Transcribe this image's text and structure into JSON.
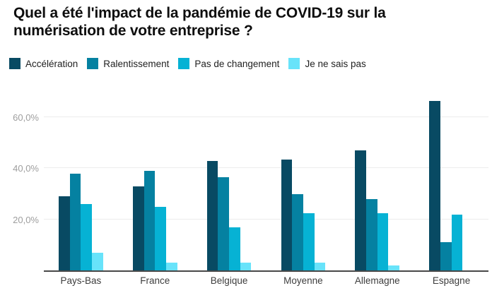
{
  "title": "Quel a été l'impact de la pandémie de COVID-19 sur la numérisation de votre entreprise ?",
  "colors": {
    "acceleration": "#084a63",
    "ralentissement": "#0581a1",
    "pas_de_changement": "#06b2d4",
    "je_ne_sais_pas": "#68e3fa",
    "gridline": "#ececec",
    "axis_line": "#484848",
    "y_label": "#9e9e9e",
    "x_label": "#3d3d3d"
  },
  "chart_data": {
    "type": "bar",
    "title": "Quel a été l'impact de la pandémie de COVID-19 sur la numérisation de votre entreprise ?",
    "categories": [
      "Pays-Bas",
      "France",
      "Belgique",
      "Moyenne",
      "Allemagne",
      "Espagne"
    ],
    "series": [
      {
        "name": "Accélération",
        "color": "#084a63",
        "values": [
          29,
          33,
          43,
          43.5,
          47,
          66.5
        ]
      },
      {
        "name": "Ralentissement",
        "color": "#0581a1",
        "values": [
          38,
          39,
          36.5,
          30,
          28,
          11
        ]
      },
      {
        "name": "Pas de changement",
        "color": "#06b2d4",
        "values": [
          26,
          25,
          17,
          22.5,
          22.5,
          22
        ]
      },
      {
        "name": "Je ne sais pas",
        "color": "#68e3fa",
        "values": [
          7,
          3,
          3,
          3,
          2,
          0
        ]
      }
    ],
    "xlabel": "",
    "ylabel": "",
    "y_ticks": [
      {
        "value": 20,
        "label": "20,0%"
      },
      {
        "value": 40,
        "label": "40,0%"
      },
      {
        "value": 60,
        "label": "60,0%"
      }
    ],
    "ylim": [
      0,
      70
    ],
    "grid": true,
    "legend_position": "top-left"
  }
}
